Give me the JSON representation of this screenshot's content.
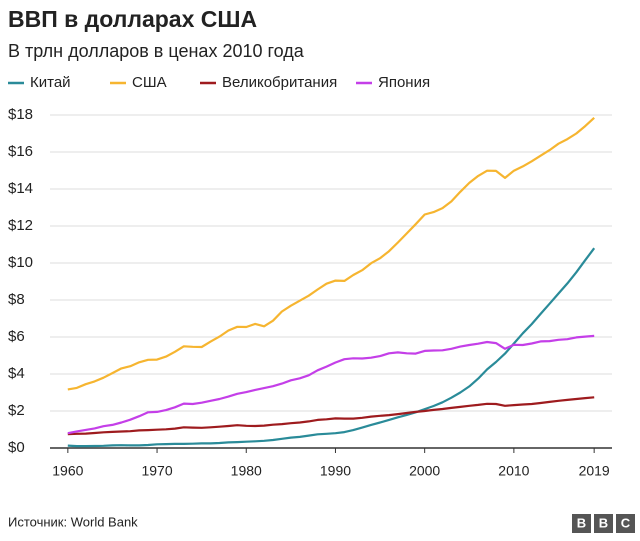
{
  "chart_data": {
    "type": "line",
    "title": "ВВП в долларах США",
    "subtitle": "В трлн долларов в ценах 2010 года",
    "source": "Источник: World Bank",
    "logo": [
      "B",
      "B",
      "C"
    ],
    "x": [
      1960,
      1961,
      1962,
      1963,
      1964,
      1965,
      1966,
      1967,
      1968,
      1969,
      1970,
      1971,
      1972,
      1973,
      1974,
      1975,
      1976,
      1977,
      1978,
      1979,
      1980,
      1981,
      1982,
      1983,
      1984,
      1985,
      1986,
      1987,
      1988,
      1989,
      1990,
      1991,
      1992,
      1993,
      1994,
      1995,
      1996,
      1997,
      1998,
      1999,
      2000,
      2001,
      2002,
      2003,
      2004,
      2005,
      2006,
      2007,
      2008,
      2009,
      2010,
      2011,
      2012,
      2013,
      2014,
      2015,
      2016,
      2017,
      2018,
      2019
    ],
    "xlim": [
      1958,
      2021
    ],
    "xticks": [
      1960,
      1970,
      1980,
      1990,
      2000,
      2010,
      2019
    ],
    "ylim": [
      0,
      18
    ],
    "yticks": [
      {
        "value": 0,
        "label": "$0"
      },
      {
        "value": 2,
        "label": "$2"
      },
      {
        "value": 4,
        "label": "$4"
      },
      {
        "value": 6,
        "label": "$6"
      },
      {
        "value": 8,
        "label": "$8"
      },
      {
        "value": 10,
        "label": "$10"
      },
      {
        "value": 12,
        "label": "$12"
      },
      {
        "value": 14,
        "label": "$14"
      },
      {
        "value": 16,
        "label": "$16"
      },
      {
        "value": 18,
        "label": "$18"
      }
    ],
    "grid": true,
    "series": [
      {
        "name": "Китай",
        "color": "#2a8b99",
        "values": [
          0.13,
          0.1,
          0.1,
          0.11,
          0.12,
          0.14,
          0.15,
          0.14,
          0.14,
          0.16,
          0.2,
          0.21,
          0.22,
          0.22,
          0.23,
          0.25,
          0.25,
          0.27,
          0.3,
          0.32,
          0.34,
          0.36,
          0.39,
          0.43,
          0.5,
          0.56,
          0.6,
          0.67,
          0.74,
          0.77,
          0.8,
          0.86,
          0.97,
          1.1,
          1.25,
          1.38,
          1.52,
          1.66,
          1.79,
          1.93,
          2.1,
          2.27,
          2.47,
          2.72,
          3.0,
          3.33,
          3.75,
          4.25,
          4.65,
          5.1,
          5.65,
          6.2,
          6.7,
          7.25,
          7.8,
          8.35,
          8.9,
          9.5,
          10.15,
          10.8
        ]
      },
      {
        "name": "США",
        "color": "#f6b530",
        "values": [
          3.17,
          3.25,
          3.45,
          3.6,
          3.8,
          4.05,
          4.3,
          4.42,
          4.63,
          4.77,
          4.78,
          4.94,
          5.2,
          5.5,
          5.47,
          5.46,
          5.75,
          6.02,
          6.35,
          6.55,
          6.54,
          6.71,
          6.58,
          6.88,
          7.38,
          7.69,
          7.96,
          8.23,
          8.57,
          8.88,
          9.05,
          9.03,
          9.35,
          9.61,
          9.99,
          10.26,
          10.64,
          11.11,
          11.6,
          12.1,
          12.62,
          12.75,
          12.97,
          13.33,
          13.85,
          14.33,
          14.71,
          14.99,
          14.98,
          14.6,
          14.99,
          15.22,
          15.5,
          15.8,
          16.1,
          16.45,
          16.7,
          17.0,
          17.4,
          17.85
        ]
      },
      {
        "name": "Великобритания",
        "color": "#9e1b1e",
        "values": [
          0.75,
          0.77,
          0.78,
          0.81,
          0.85,
          0.87,
          0.89,
          0.91,
          0.95,
          0.97,
          0.99,
          1.01,
          1.05,
          1.12,
          1.1,
          1.09,
          1.12,
          1.15,
          1.19,
          1.23,
          1.2,
          1.19,
          1.21,
          1.26,
          1.29,
          1.34,
          1.38,
          1.44,
          1.52,
          1.55,
          1.6,
          1.59,
          1.59,
          1.63,
          1.7,
          1.74,
          1.78,
          1.83,
          1.89,
          1.95,
          2.0,
          2.06,
          2.11,
          2.17,
          2.22,
          2.28,
          2.33,
          2.39,
          2.38,
          2.28,
          2.32,
          2.35,
          2.38,
          2.43,
          2.49,
          2.55,
          2.6,
          2.65,
          2.7,
          2.74
        ]
      },
      {
        "name": "Япония",
        "color": "#c43fe8",
        "values": [
          0.8,
          0.9,
          0.98,
          1.06,
          1.18,
          1.25,
          1.38,
          1.53,
          1.72,
          1.93,
          1.95,
          2.05,
          2.2,
          2.4,
          2.38,
          2.45,
          2.55,
          2.65,
          2.78,
          2.93,
          3.02,
          3.14,
          3.24,
          3.34,
          3.48,
          3.66,
          3.77,
          3.93,
          4.2,
          4.4,
          4.62,
          4.8,
          4.85,
          4.84,
          4.88,
          4.97,
          5.12,
          5.17,
          5.12,
          5.1,
          5.25,
          5.27,
          5.28,
          5.36,
          5.48,
          5.57,
          5.64,
          5.73,
          5.67,
          5.36,
          5.58,
          5.57,
          5.65,
          5.76,
          5.78,
          5.85,
          5.88,
          5.98,
          6.02,
          6.06
        ]
      }
    ]
  }
}
